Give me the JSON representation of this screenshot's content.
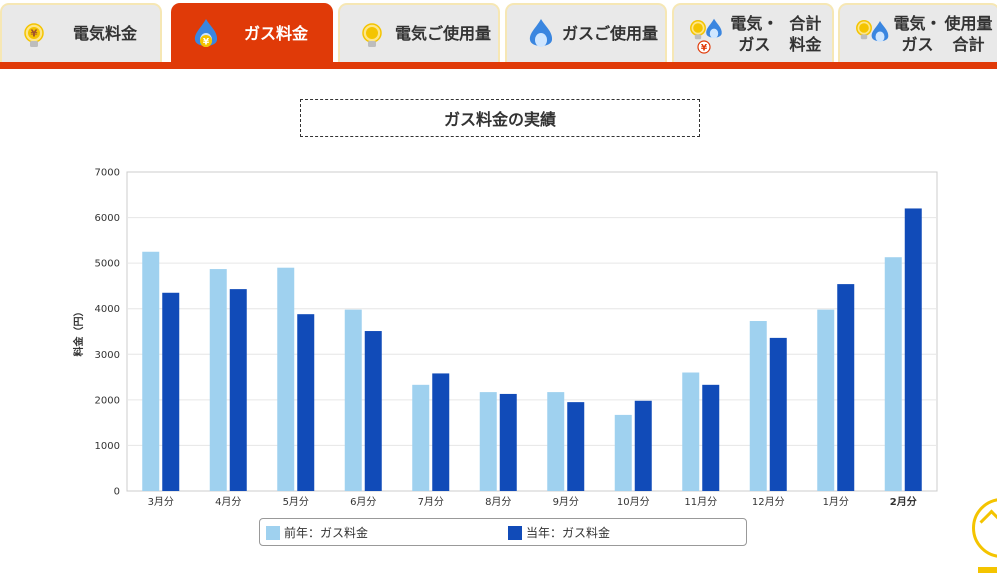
{
  "tabs": [
    {
      "id": "elec-fee",
      "lines": [
        "電気料金"
      ],
      "icon": "bulb-yen-icon",
      "active": false
    },
    {
      "id": "gas-fee",
      "lines": [
        "ガス料金"
      ],
      "icon": "flame-yen-icon",
      "active": true
    },
    {
      "id": "elec-usage",
      "lines": [
        "電気",
        "ご使用量"
      ],
      "icon": "bulb-icon",
      "active": false
    },
    {
      "id": "gas-usage",
      "lines": [
        "ガス",
        "ご使用量"
      ],
      "icon": "flame-icon",
      "active": false
    },
    {
      "id": "total-fee",
      "lines": [
        "電気・ガス",
        "合計料金"
      ],
      "icon": "bulb-flame-yen-icon",
      "active": false
    },
    {
      "id": "total-usage",
      "lines": [
        "電気・ガス",
        "使用量合計"
      ],
      "icon": "bulb-flame-icon",
      "active": false
    }
  ],
  "colors": {
    "accent": "#e03a08",
    "tab_bg": "#e9e9e9",
    "tab_border": "#f6e7b4",
    "prev_year": "#9fd1ef",
    "curr_year": "#114bb8",
    "grid": "#e6e6e6",
    "flame": "#3a86e0",
    "bulb": "#f4c400",
    "scroll_button": "#f4c400"
  },
  "chart_data": {
    "type": "bar",
    "title": "ガス料金の実績",
    "ylabel": "料金（円）",
    "xlabel": "",
    "ylim": [
      0,
      7000
    ],
    "yticks": [
      0,
      1000,
      2000,
      3000,
      4000,
      5000,
      6000,
      7000
    ],
    "grid": true,
    "legend_position": "bottom",
    "categories": [
      "3月分",
      "4月分",
      "5月分",
      "6月分",
      "7月分",
      "8月分",
      "9月分",
      "10月分",
      "11月分",
      "12月分",
      "1月分",
      "2月分"
    ],
    "highlight_category": "2月分",
    "series": [
      {
        "name": "前年：ガス料金",
        "color": "#9fd1ef",
        "values": [
          5250,
          4870,
          4900,
          3980,
          2330,
          2170,
          2170,
          1670,
          2600,
          3730,
          3980,
          5130
        ]
      },
      {
        "name": "当年：ガス料金",
        "color": "#114bb8",
        "values": [
          4350,
          4430,
          3880,
          3510,
          2580,
          2130,
          1950,
          1980,
          2330,
          3360,
          4540,
          6200
        ]
      }
    ]
  },
  "scroll_top": {
    "icon": "arrow-up-icon"
  }
}
